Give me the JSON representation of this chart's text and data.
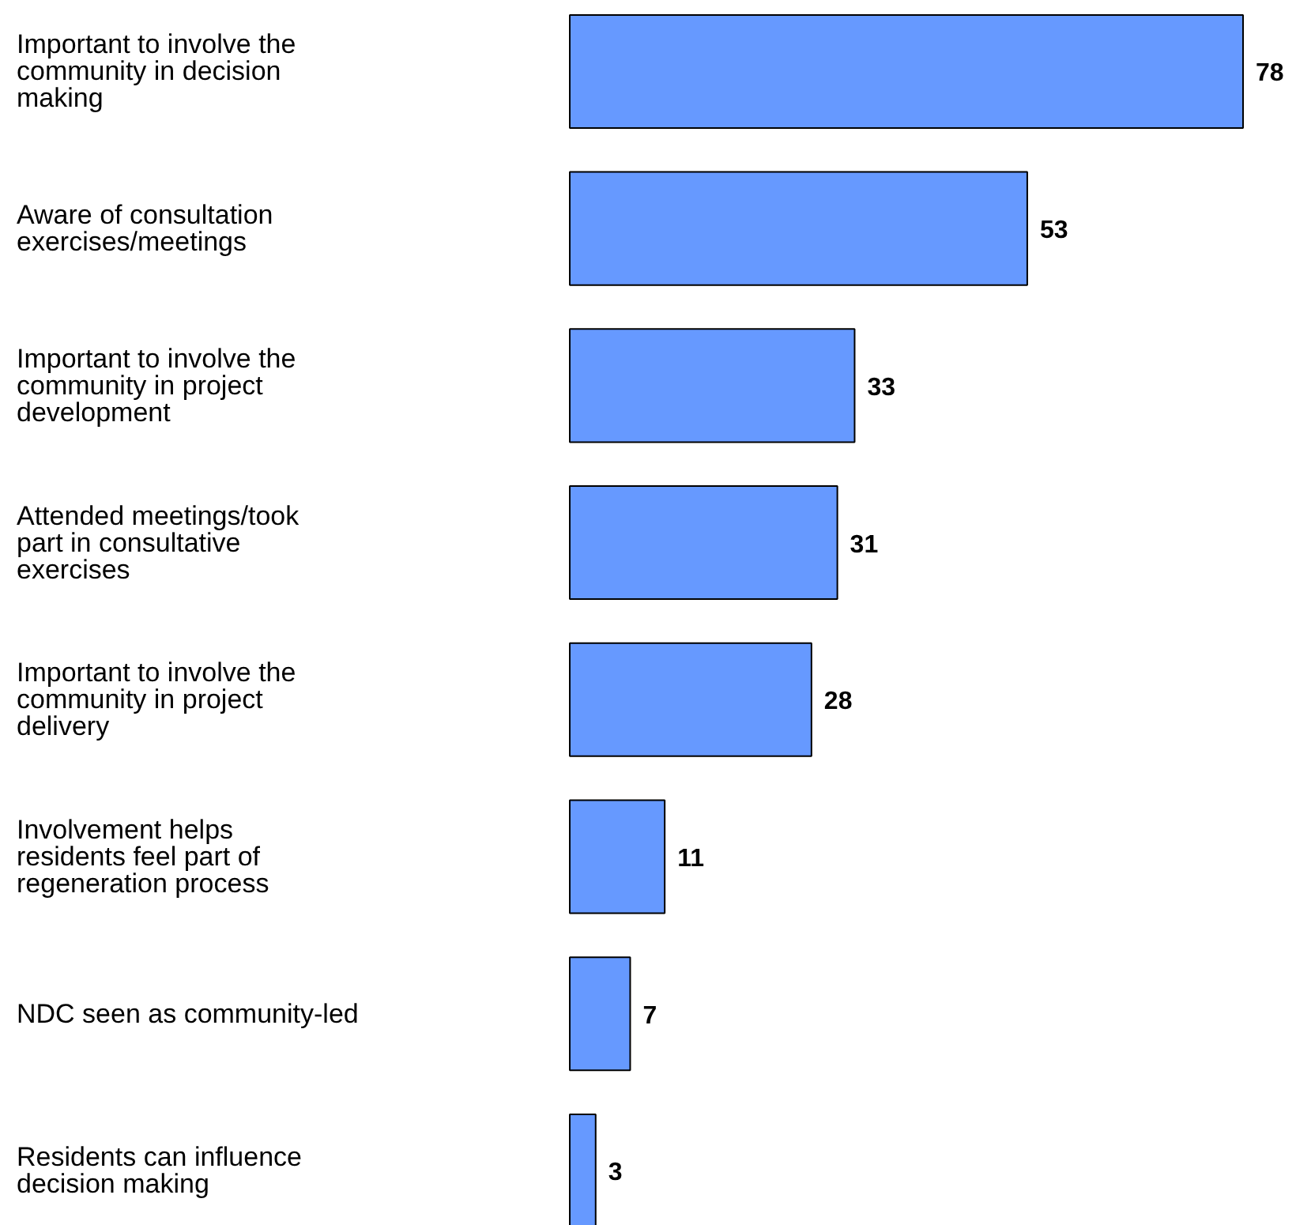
{
  "chart_data": {
    "type": "bar",
    "orientation": "horizontal",
    "data_labels": true,
    "color": "#6699ff",
    "categories": [
      "Important to involve the community in decision making",
      "Aware of consultation exercises/meetings",
      "Important to involve the community in project development",
      "Attended meetings/took part in consultative exercises",
      "Important to involve the community in project delivery",
      "Involvement helps residents feel part of regeneration process",
      "NDC seen as community-led",
      "Residents can influence decision making"
    ],
    "values": [
      78,
      53,
      33,
      31,
      28,
      11,
      7,
      3
    ]
  }
}
